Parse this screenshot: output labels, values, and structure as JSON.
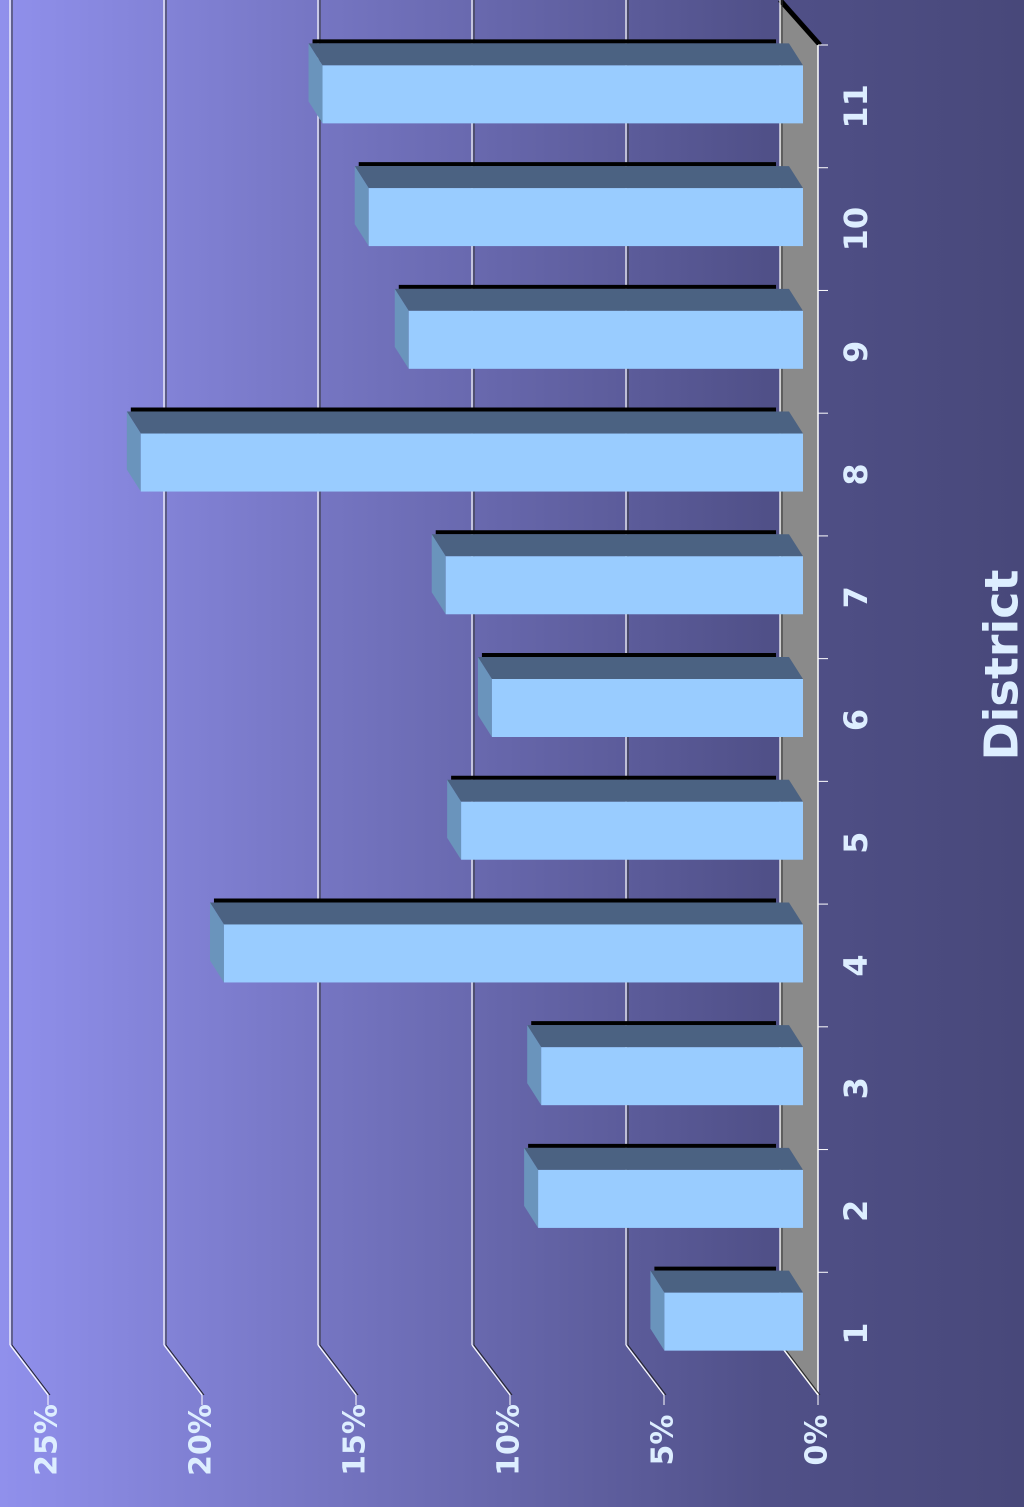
{
  "chart_data": {
    "type": "bar",
    "orientation": "rotated-3d",
    "x_label": "District",
    "categories": [
      "1",
      "2",
      "3",
      "4",
      "5",
      "6",
      "7",
      "8",
      "9",
      "10",
      "11"
    ],
    "values": [
      4.5,
      8.6,
      8.5,
      18.8,
      11.1,
      10.1,
      11.6,
      21.5,
      12.8,
      14.1,
      15.6
    ],
    "color": "#99ccff",
    "ylim": [
      0,
      25
    ],
    "yticks": [
      {
        "value": 0,
        "label": "0%"
      },
      {
        "value": 5,
        "label": "5%"
      },
      {
        "value": 10,
        "label": "10%"
      },
      {
        "value": 15,
        "label": "15%"
      },
      {
        "value": 20,
        "label": "20%"
      },
      {
        "value": 25,
        "label": "25%"
      }
    ],
    "grid": true
  }
}
